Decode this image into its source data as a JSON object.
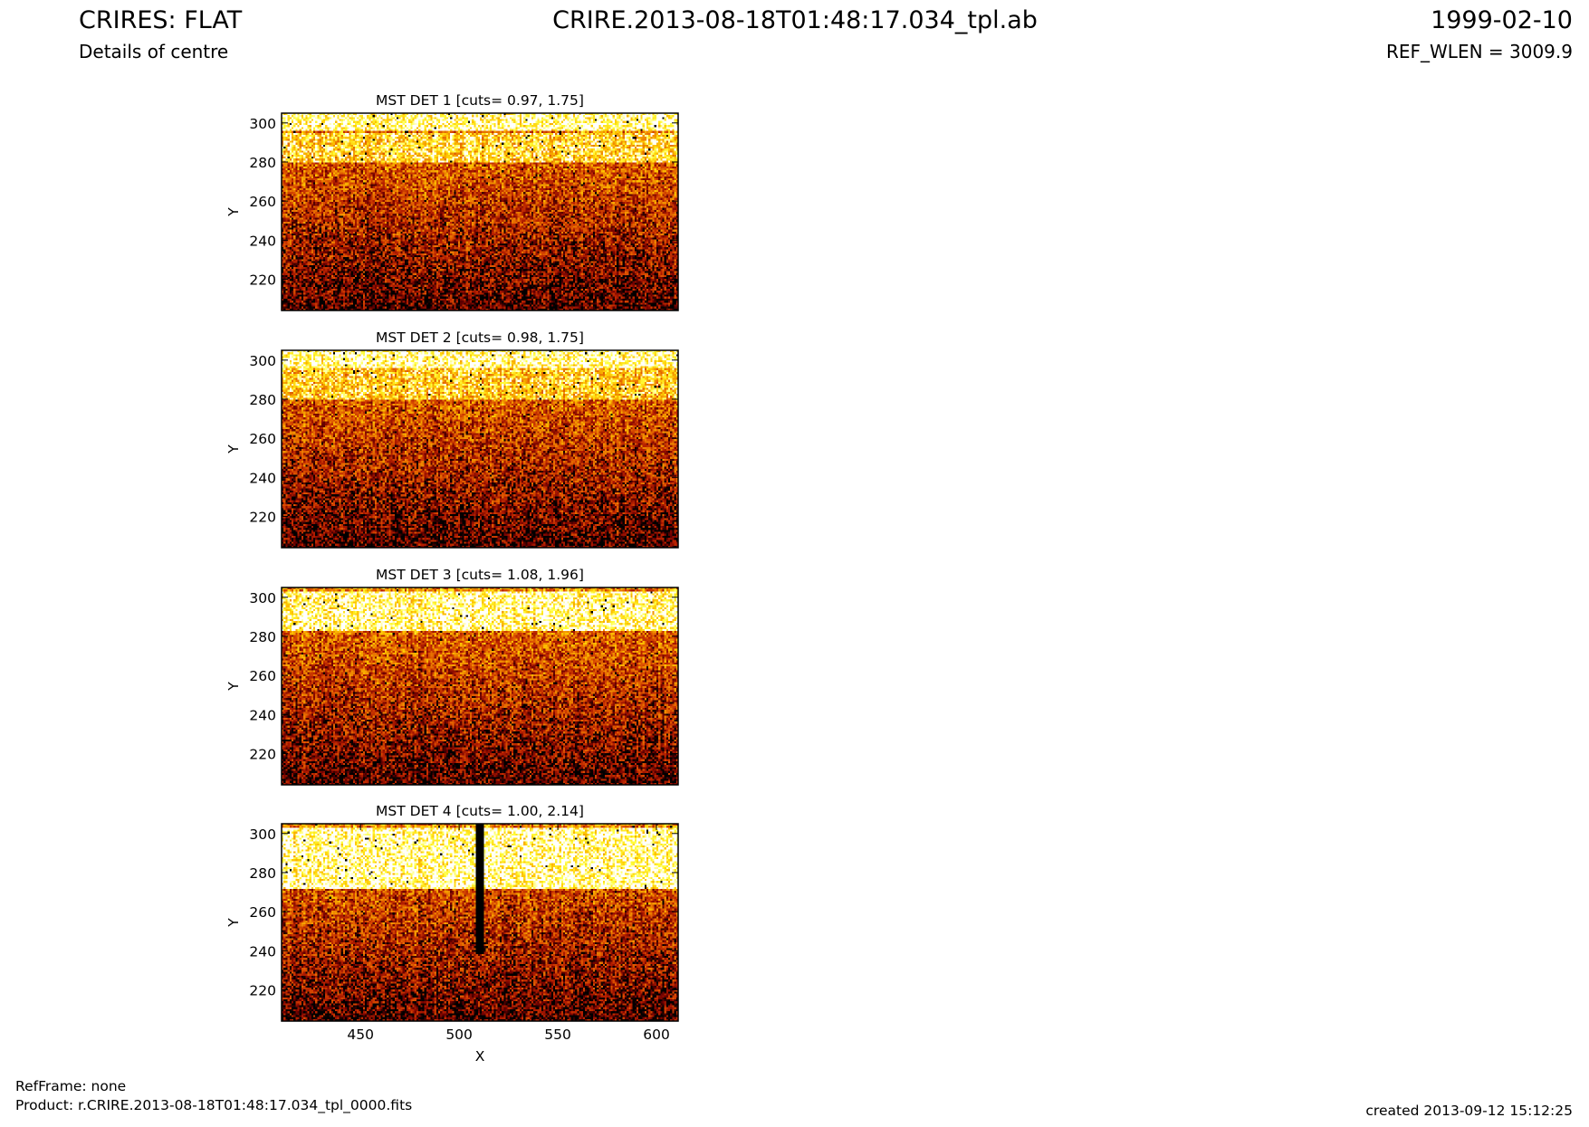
{
  "header": {
    "title": "CRIRES: FLAT",
    "subtitle": "Details of centre",
    "filename": "CRIRE.2013-08-18T01:48:17.034_tpl.ab",
    "date": "1999-02-10",
    "ref_wlen": "REF_WLEN = 3009.9"
  },
  "footer": {
    "refframe": "RefFrame: none",
    "product": "Product: r.CRIRE.2013-08-18T01:48:17.034_tpl_0000.fits",
    "created": "created 2013-09-12 15:12:25"
  },
  "colormap": [
    "#000000",
    "#6e0000",
    "#b41e00",
    "#dc5000",
    "#f08c00",
    "#ffc800",
    "#ffff3c",
    "#ffffff"
  ],
  "chart_data": [
    {
      "type": "heatmap",
      "title": "MST DET 1 [cuts= 0.97, 1.75]",
      "xlabel": "",
      "ylabel": "Y",
      "xlim": [
        410,
        611
      ],
      "ylim": [
        204,
        305
      ],
      "x_ticks": [],
      "y_ticks": [
        220,
        240,
        260,
        280,
        300
      ],
      "cuts": [
        0.97,
        1.75
      ],
      "band_rows": [
        {
          "y_from": 280,
          "y_to": 295,
          "level": 0.78
        }
      ],
      "vertical_features": []
    },
    {
      "type": "heatmap",
      "title": "MST DET 2 [cuts= 0.98, 1.75]",
      "xlabel": "",
      "ylabel": "Y",
      "xlim": [
        410,
        611
      ],
      "ylim": [
        204,
        305
      ],
      "x_ticks": [],
      "y_ticks": [
        220,
        240,
        260,
        280,
        300
      ],
      "cuts": [
        0.98,
        1.75
      ],
      "band_rows": [
        {
          "y_from": 280,
          "y_to": 297,
          "level": 0.74
        }
      ],
      "vertical_features": []
    },
    {
      "type": "heatmap",
      "title": "MST DET 3 [cuts= 1.08, 1.96]",
      "xlabel": "",
      "ylabel": "Y",
      "xlim": [
        410,
        611
      ],
      "ylim": [
        204,
        305
      ],
      "x_ticks": [],
      "y_ticks": [
        220,
        240,
        260,
        280,
        300
      ],
      "cuts": [
        1.08,
        1.96
      ],
      "band_rows": [
        {
          "y_from": 283,
          "y_to": 303,
          "level": 0.92
        }
      ],
      "vertical_features": []
    },
    {
      "type": "heatmap",
      "title": "MST DET 4 [cuts= 1.00, 2.14]",
      "xlabel": "X",
      "ylabel": "Y",
      "xlim": [
        410,
        611
      ],
      "ylim": [
        204,
        305
      ],
      "x_ticks": [
        450,
        500,
        550,
        600
      ],
      "y_ticks": [
        220,
        240,
        260,
        280,
        300
      ],
      "cuts": [
        1.0,
        2.14
      ],
      "band_rows": [
        {
          "y_from": 272,
          "y_to": 303,
          "level": 0.95
        }
      ],
      "vertical_features": [
        {
          "x_from": 508,
          "x_to": 513,
          "y_from": 238,
          "y_to": 305
        }
      ]
    }
  ]
}
